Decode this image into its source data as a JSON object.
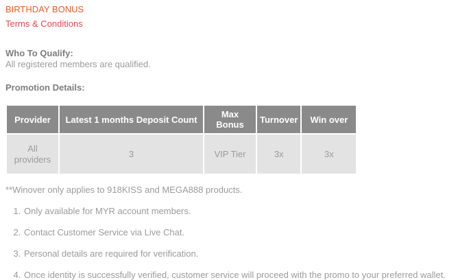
{
  "page": {
    "title": "BIRTHDAY BONUS",
    "subtitle": "Terms & Conditions"
  },
  "sections": {
    "qualify_heading": "Who To Qualify:",
    "qualify_text": "All registered members are qualified.",
    "promo_heading": "Promotion Details:"
  },
  "promo_table": {
    "headers": [
      "Provider",
      "Latest 1 months Deposit Count",
      "Max Bonus",
      "Turnover",
      "Win over"
    ],
    "row": [
      "All providers",
      "3",
      "VIP Tier",
      "3x",
      "3x"
    ]
  },
  "notes": {
    "winover": "**Winover only applies to 918KISS and MEGA888 products."
  },
  "terms_list": [
    "Only available for MYR account members.",
    "Contact Customer Service via Live Chat.",
    "Personal details are required for verification.",
    "Once identity is successfully verified, customer service will proceed with the promo to your preferred wallet."
  ],
  "colors": {
    "title": "#ef5b24",
    "subtitle": "#e8474f",
    "heading_text": "#7d7d7d",
    "body_text": "#9b9b9b",
    "table_header_bg": "#8a8a8a",
    "table_header_text": "#ffffff",
    "table_row_bg": "#e3e3e3"
  }
}
